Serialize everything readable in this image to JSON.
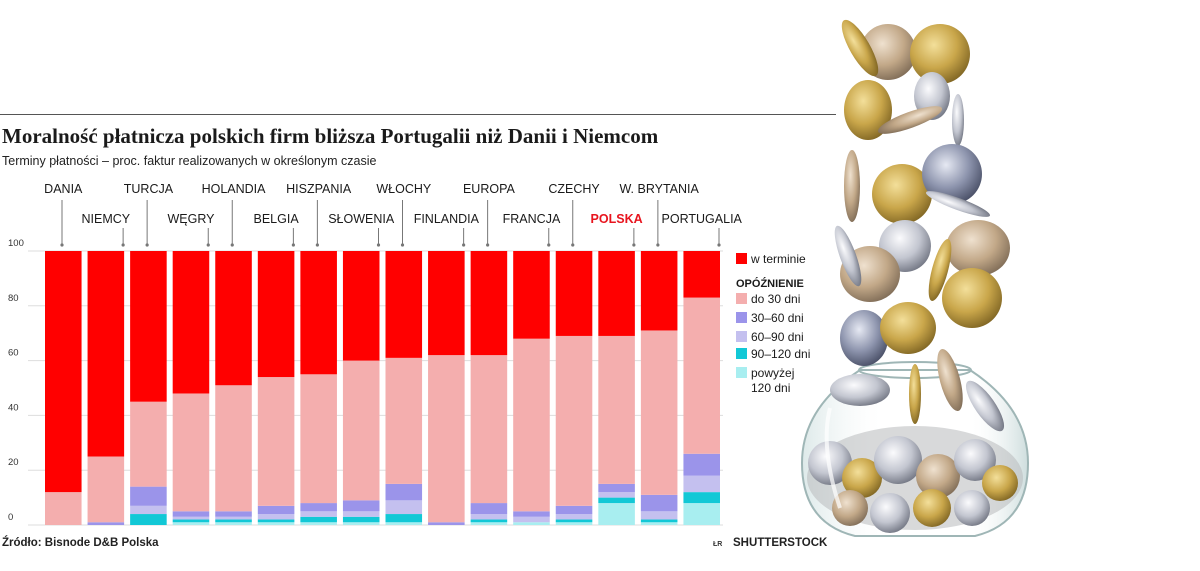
{
  "header": {
    "title": "Moralność płatnicza polskich firm bliższa Portugalii niż Danii i Niemcom",
    "subtitle": "Terminy płatności – proc. faktur realizowanych w określonym czasie"
  },
  "footer": {
    "source": "Źródło: Bisnode D&B Polska",
    "initials": "ŁR",
    "credit": "SHUTTERSTOCK"
  },
  "chart_data": {
    "type": "bar",
    "stacked": true,
    "ylim": [
      0,
      100
    ],
    "yticks": [
      0,
      20,
      40,
      60,
      80,
      100
    ],
    "grid": true,
    "legend_position": "right",
    "highlight_category": "POLSKA",
    "highlight_color": "#e8141e",
    "categories": [
      "DANIA",
      "NIEMCY",
      "TURCJA",
      "WĘGRY",
      "HOLANDIA",
      "BELGIA",
      "HISZPANIA",
      "SŁOWENIA",
      "WŁOCHY",
      "FINLANDIA",
      "EUROPA",
      "FRANCJA",
      "CZECHY",
      "POLSKA",
      "W. BRYTANIA",
      "PORTUGALIA"
    ],
    "series": [
      {
        "name": "powyżej 120 dni",
        "color": "#a8eef0",
        "values": [
          0,
          0,
          0,
          1,
          1,
          1,
          1,
          1,
          1,
          0,
          1,
          1,
          1,
          8,
          1,
          8
        ]
      },
      {
        "name": "90–120 dni",
        "color": "#12c8d6",
        "values": [
          0,
          0,
          4,
          1,
          1,
          1,
          2,
          2,
          3,
          0,
          1,
          0,
          1,
          2,
          1,
          4
        ]
      },
      {
        "name": "60–90 dni",
        "color": "#c4c0ef",
        "values": [
          0,
          0,
          3,
          1,
          1,
          2,
          2,
          2,
          5,
          0,
          2,
          2,
          2,
          2,
          3,
          6
        ]
      },
      {
        "name": "30–60 dni",
        "color": "#9b94ea",
        "values": [
          0,
          1,
          7,
          2,
          2,
          3,
          3,
          4,
          6,
          1,
          4,
          2,
          3,
          3,
          6,
          8
        ]
      },
      {
        "name": "do 30 dni",
        "color": "#f4aeae",
        "values": [
          12,
          24,
          31,
          43,
          46,
          47,
          47,
          51,
          46,
          61,
          54,
          63,
          62,
          54,
          60,
          57
        ]
      },
      {
        "name": "w terminie",
        "color": "#ff0000",
        "values": [
          88,
          75,
          55,
          52,
          49,
          46,
          45,
          40,
          39,
          38,
          38,
          32,
          31,
          31,
          29,
          17
        ]
      }
    ],
    "legend": {
      "items": [
        {
          "label": "w terminie",
          "color": "#ff0000"
        },
        {
          "label": "do 30 dni",
          "color": "#f4aeae"
        },
        {
          "label": "30–60 dni",
          "color": "#9b94ea"
        },
        {
          "label": "60–90 dni",
          "color": "#c4c0ef"
        },
        {
          "label": "90–120 dni",
          "color": "#12c8d6"
        },
        {
          "label": "powyżej 120 dni",
          "color": "#a8eef0"
        }
      ],
      "group_heading": "Opóźnienie",
      "group_heading_display": "OPÓŹNIENIE",
      "multiline_labels": {
        "powyżej 120 dni": [
          "powyżej",
          "120 dni"
        ]
      }
    }
  }
}
